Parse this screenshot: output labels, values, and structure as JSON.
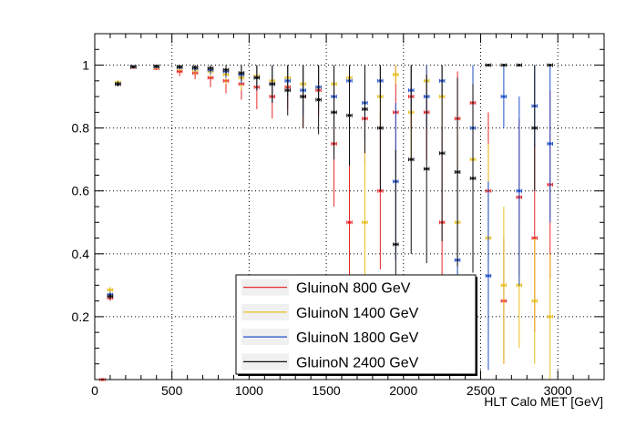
{
  "chart_data": {
    "type": "scatter",
    "title": "",
    "xlabel": "HLT Calo MET [GeV]",
    "ylabel": "",
    "xlim": [
      0,
      3300
    ],
    "ylim": [
      0,
      1.1
    ],
    "xticks": [
      0,
      500,
      1000,
      1500,
      2000,
      2500,
      3000
    ],
    "xtick_labels": [
      "0",
      "500",
      "1000",
      "1500",
      "2000",
      "2500",
      "3000"
    ],
    "yticks": [
      0.2,
      0.4,
      0.6,
      0.8,
      1.0
    ],
    "ytick_labels": [
      "0.2",
      "0.4",
      "0.6",
      "0.8",
      "1"
    ],
    "grid": true,
    "legend_position": "bottom-center",
    "bin_half_width": 25,
    "series": [
      {
        "name": "GluinoN 800 GeV",
        "color": "#e8282a",
        "points": [
          {
            "x": 50,
            "y": 0.0,
            "ey": 0.0
          },
          {
            "x": 100,
            "y": 0.26,
            "ey": 0.01
          },
          {
            "x": 150,
            "y": 0.94,
            "ey": 0.008
          },
          {
            "x": 250,
            "y": 0.993,
            "ey": 0.004
          },
          {
            "x": 400,
            "y": 0.99,
            "ey": 0.006
          },
          {
            "x": 550,
            "y": 0.98,
            "ey": 0.015
          },
          {
            "x": 650,
            "y": 0.975,
            "ey": 0.02
          },
          {
            "x": 750,
            "y": 0.96,
            "ey": 0.03
          },
          {
            "x": 850,
            "y": 0.95,
            "ey": 0.04
          },
          {
            "x": 950,
            "y": 0.94,
            "ey": 0.05
          },
          {
            "x": 1050,
            "y": 0.93,
            "ey": 0.07
          },
          {
            "x": 1150,
            "y": 0.9,
            "ey": 0.07
          },
          {
            "x": 1250,
            "y": 0.93,
            "ey": 0.07
          },
          {
            "x": 1350,
            "y": 0.9,
            "ey": 0.1
          },
          {
            "x": 1450,
            "y": 0.92,
            "ey": 0.08
          },
          {
            "x": 1550,
            "y": 0.75,
            "ey": 0.2
          },
          {
            "x": 1650,
            "y": 0.5,
            "ey": 0.3
          },
          {
            "x": 1750,
            "y": 0.83,
            "ey": 0.15
          },
          {
            "x": 1850,
            "y": 0.6,
            "ey": 0.25
          },
          {
            "x": 1950,
            "y": 0.85,
            "ey": 0.15
          },
          {
            "x": 2050,
            "y": 0.9,
            "ey": 0.1
          },
          {
            "x": 2150,
            "y": 0.85,
            "ey": 0.15
          },
          {
            "x": 2250,
            "y": 0.5,
            "ey": 0.3
          },
          {
            "x": 2350,
            "y": 0.83,
            "ey": 0.15
          },
          {
            "x": 2450,
            "y": 0.88,
            "ey": 0.12
          },
          {
            "x": 2550,
            "y": 0.6,
            "ey": 0.25
          },
          {
            "x": 2650,
            "y": 0.25,
            "ey": 0.2
          },
          {
            "x": 2750,
            "y": 0.58,
            "ey": 0.25
          },
          {
            "x": 2850,
            "y": 0.45,
            "ey": 0.3
          },
          {
            "x": 2950,
            "y": 0.62,
            "ey": 0.3
          }
        ]
      },
      {
        "name": "GluinoN 1400 GeV",
        "color": "#e8c01e",
        "points": [
          {
            "x": 100,
            "y": 0.285,
            "ey": 0.01
          },
          {
            "x": 150,
            "y": 0.945,
            "ey": 0.008
          },
          {
            "x": 250,
            "y": 0.995,
            "ey": 0.003
          },
          {
            "x": 400,
            "y": 0.993,
            "ey": 0.005
          },
          {
            "x": 550,
            "y": 0.99,
            "ey": 0.01
          },
          {
            "x": 650,
            "y": 0.985,
            "ey": 0.015
          },
          {
            "x": 750,
            "y": 0.98,
            "ey": 0.02
          },
          {
            "x": 850,
            "y": 0.97,
            "ey": 0.03
          },
          {
            "x": 950,
            "y": 0.96,
            "ey": 0.04
          },
          {
            "x": 1050,
            "y": 0.965,
            "ey": 0.035
          },
          {
            "x": 1150,
            "y": 0.95,
            "ey": 0.05
          },
          {
            "x": 1250,
            "y": 0.96,
            "ey": 0.04
          },
          {
            "x": 1350,
            "y": 0.94,
            "ey": 0.06
          },
          {
            "x": 1450,
            "y": 0.93,
            "ey": 0.07
          },
          {
            "x": 1550,
            "y": 0.94,
            "ey": 0.06
          },
          {
            "x": 1650,
            "y": 0.96,
            "ey": 0.04
          },
          {
            "x": 1750,
            "y": 0.5,
            "ey": 0.3
          },
          {
            "x": 1850,
            "y": 0.9,
            "ey": 0.1
          },
          {
            "x": 1950,
            "y": 0.97,
            "ey": 0.03
          },
          {
            "x": 2050,
            "y": 0.85,
            "ey": 0.15
          },
          {
            "x": 2150,
            "y": 0.95,
            "ey": 0.05
          },
          {
            "x": 2250,
            "y": 0.9,
            "ey": 0.1
          },
          {
            "x": 2350,
            "y": 0.5,
            "ey": 0.3
          },
          {
            "x": 2450,
            "y": 0.7,
            "ey": 0.3
          },
          {
            "x": 2550,
            "y": 0.45,
            "ey": 0.3
          },
          {
            "x": 2650,
            "y": 0.3,
            "ey": 0.25
          },
          {
            "x": 2750,
            "y": 0.3,
            "ey": 0.2
          },
          {
            "x": 2850,
            "y": 0.25,
            "ey": 0.2
          },
          {
            "x": 2950,
            "y": 0.2,
            "ey": 0.2
          }
        ]
      },
      {
        "name": "GluinoN 1800 GeV",
        "color": "#1f4fc9",
        "points": [
          {
            "x": 100,
            "y": 0.27,
            "ey": 0.01
          },
          {
            "x": 150,
            "y": 0.94,
            "ey": 0.008
          },
          {
            "x": 250,
            "y": 0.995,
            "ey": 0.003
          },
          {
            "x": 400,
            "y": 0.995,
            "ey": 0.004
          },
          {
            "x": 550,
            "y": 0.993,
            "ey": 0.006
          },
          {
            "x": 650,
            "y": 0.99,
            "ey": 0.01
          },
          {
            "x": 750,
            "y": 0.985,
            "ey": 0.015
          },
          {
            "x": 850,
            "y": 0.98,
            "ey": 0.02
          },
          {
            "x": 950,
            "y": 0.97,
            "ey": 0.03
          },
          {
            "x": 1050,
            "y": 0.96,
            "ey": 0.04
          },
          {
            "x": 1150,
            "y": 0.94,
            "ey": 0.06
          },
          {
            "x": 1250,
            "y": 0.95,
            "ey": 0.05
          },
          {
            "x": 1350,
            "y": 0.92,
            "ey": 0.08
          },
          {
            "x": 1450,
            "y": 0.93,
            "ey": 0.07
          },
          {
            "x": 1550,
            "y": 0.9,
            "ey": 0.1
          },
          {
            "x": 1650,
            "y": 0.95,
            "ey": 0.05
          },
          {
            "x": 1750,
            "y": 0.88,
            "ey": 0.12
          },
          {
            "x": 1850,
            "y": 0.95,
            "ey": 0.05
          },
          {
            "x": 1950,
            "y": 0.63,
            "ey": 0.25
          },
          {
            "x": 2050,
            "y": 0.92,
            "ey": 0.08
          },
          {
            "x": 2150,
            "y": 0.9,
            "ey": 0.1
          },
          {
            "x": 2250,
            "y": 0.95,
            "ey": 0.05
          },
          {
            "x": 2350,
            "y": 0.38,
            "ey": 0.3
          },
          {
            "x": 2450,
            "y": 0.8,
            "ey": 0.2
          },
          {
            "x": 2550,
            "y": 0.33,
            "ey": 0.3
          },
          {
            "x": 2650,
            "y": 0.9,
            "ey": 0.1
          },
          {
            "x": 2750,
            "y": 0.6,
            "ey": 0.3
          },
          {
            "x": 2850,
            "y": 0.87,
            "ey": 0.13
          },
          {
            "x": 2950,
            "y": 0.75,
            "ey": 0.25
          }
        ]
      },
      {
        "name": "GluinoN 2400 GeV",
        "color": "#111111",
        "points": [
          {
            "x": 100,
            "y": 0.265,
            "ey": 0.01
          },
          {
            "x": 150,
            "y": 0.94,
            "ey": 0.008
          },
          {
            "x": 250,
            "y": 0.995,
            "ey": 0.003
          },
          {
            "x": 400,
            "y": 0.997,
            "ey": 0.003
          },
          {
            "x": 550,
            "y": 0.995,
            "ey": 0.005
          },
          {
            "x": 650,
            "y": 0.993,
            "ey": 0.007
          },
          {
            "x": 750,
            "y": 0.99,
            "ey": 0.01
          },
          {
            "x": 850,
            "y": 0.985,
            "ey": 0.015
          },
          {
            "x": 950,
            "y": 0.975,
            "ey": 0.025
          },
          {
            "x": 1050,
            "y": 0.96,
            "ey": 0.04
          },
          {
            "x": 1150,
            "y": 0.94,
            "ey": 0.06
          },
          {
            "x": 1250,
            "y": 0.92,
            "ey": 0.08
          },
          {
            "x": 1350,
            "y": 0.9,
            "ey": 0.1
          },
          {
            "x": 1450,
            "y": 0.89,
            "ey": 0.11
          },
          {
            "x": 1550,
            "y": 0.85,
            "ey": 0.15
          },
          {
            "x": 1650,
            "y": 0.84,
            "ey": 0.16
          },
          {
            "x": 1750,
            "y": 0.86,
            "ey": 0.14
          },
          {
            "x": 1850,
            "y": 0.8,
            "ey": 0.2
          },
          {
            "x": 1950,
            "y": 0.43,
            "ey": 0.3
          },
          {
            "x": 2050,
            "y": 0.7,
            "ey": 0.3
          },
          {
            "x": 2150,
            "y": 0.67,
            "ey": 0.3
          },
          {
            "x": 2250,
            "y": 0.72,
            "ey": 0.28
          },
          {
            "x": 2350,
            "y": 0.66,
            "ey": 0.3
          },
          {
            "x": 2450,
            "y": 0.64,
            "ey": 0.3
          },
          {
            "x": 2550,
            "y": 1.0,
            "ey": 0.0
          },
          {
            "x": 2650,
            "y": 1.0,
            "ey": 0.0
          },
          {
            "x": 2750,
            "y": 1.0,
            "ey": 0.0
          },
          {
            "x": 2850,
            "y": 0.8,
            "ey": 0.2
          },
          {
            "x": 2950,
            "y": 1.0,
            "ey": 0.0
          }
        ]
      }
    ]
  }
}
